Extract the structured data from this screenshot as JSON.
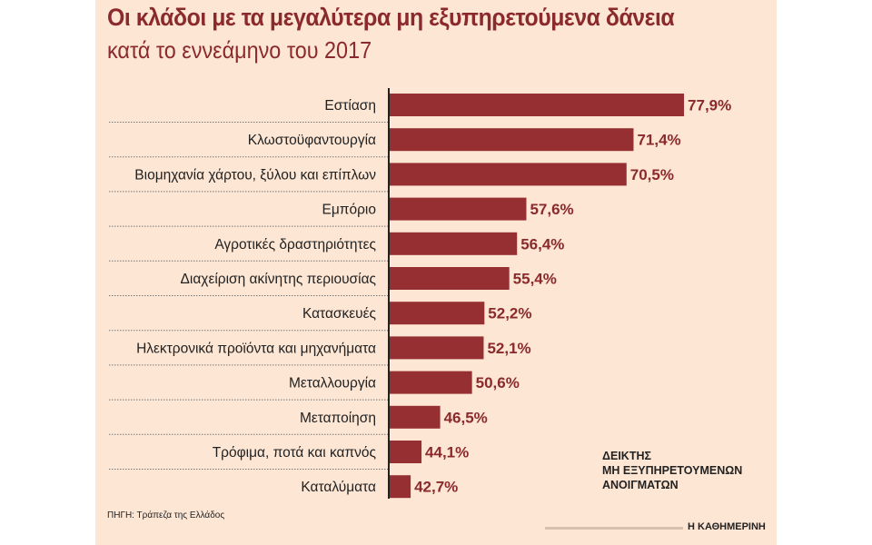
{
  "chart_data": {
    "type": "bar",
    "orientation": "horizontal",
    "title": "Οι κλάδοι με τα μεγαλύτερα μη εξυπηρετούμενα δάνεια",
    "subtitle": "κατά το εννεάμηνο του 2017",
    "categories": [
      "Εστίαση",
      "Κλωστοϋφαντουργία",
      "Βιομηχανία χάρτου, ξύλου και επίπλων",
      "Εμπόριο",
      "Αγροτικές δραστηριότητες",
      "Διαχείριση ακίνητης περιουσίας",
      "Κατασκευές",
      "Ηλεκτρονικά προϊόντα και μηχανήματα",
      "Μεταλλουργία",
      "Μεταποίηση",
      "Τρόφιμα, ποτά και καπνός",
      "Καταλύματα"
    ],
    "values": [
      77.9,
      71.4,
      70.5,
      57.6,
      56.4,
      55.4,
      52.2,
      52.1,
      50.6,
      46.5,
      44.1,
      42.7
    ],
    "value_labels": [
      "77,9%",
      "71,4%",
      "70,5%",
      "57,6%",
      "56,4%",
      "55,4%",
      "52,2%",
      "52,1%",
      "50,6%",
      "46,5%",
      "44,1%",
      "42,7%"
    ],
    "xlim": [
      40,
      80
    ],
    "unit": "%",
    "grid": false,
    "legend_text": [
      "ΔΕΙΚΤΗΣ",
      "ΜΗ ΕΞΥΠΗΡΕΤΟΥΜΕΝΩΝ",
      "ΑΝΟΙΓΜΑΤΩΝ"
    ],
    "bar_color": "#962f31",
    "background_color": "#fde6d4"
  },
  "source": "ΠΗΓΗ: Τράπεζα της Ελλάδος",
  "brand": "Η ΚΑΘΗΜΕΡΙΝΗ"
}
